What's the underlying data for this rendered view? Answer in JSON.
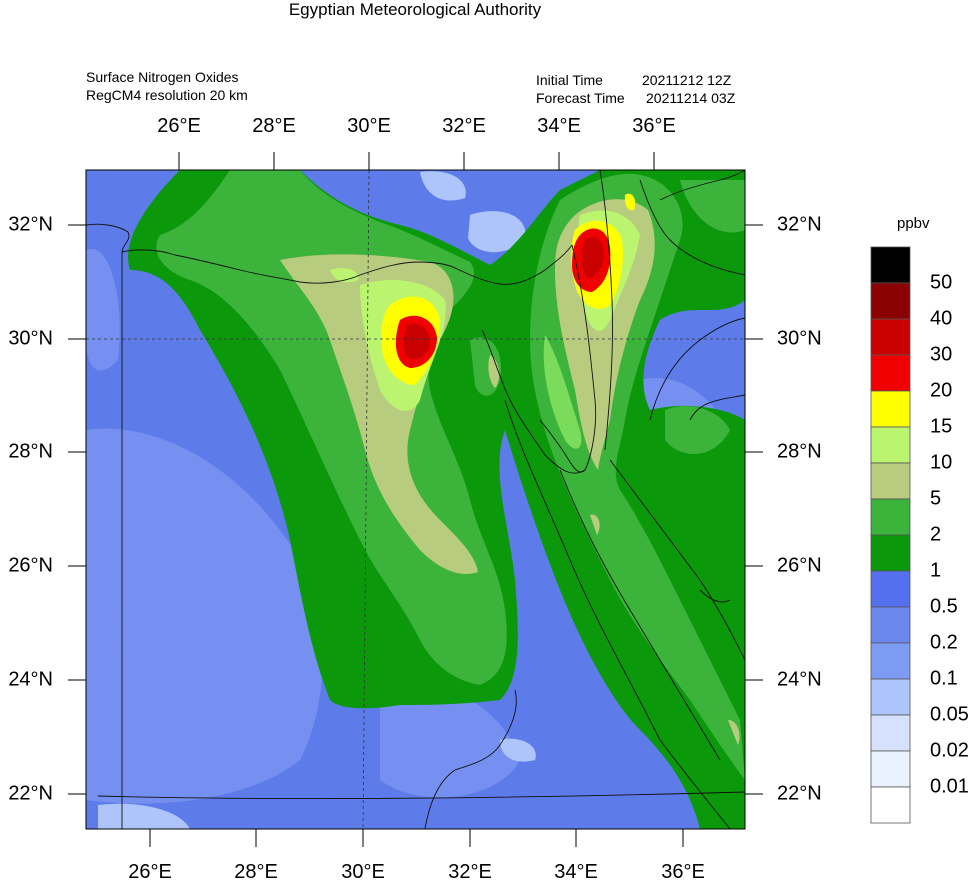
{
  "title": "Egyptian Meteorological Authority",
  "header": {
    "variable": "Surface Nitrogen Oxides",
    "model": "RegCM4   resolution 20 km",
    "initial_label": "Initial Time",
    "initial_value": "20211212 12Z",
    "forecast_label": "Forecast Time",
    "forecast_value": "20211214 03Z"
  },
  "axes": {
    "top_lon_labels": [
      "26°E",
      "28°E",
      "30°E",
      "32°E",
      "34°E",
      "36°E"
    ],
    "bottom_lon_labels": [
      "26°E",
      "28°E",
      "30°E",
      "32°E",
      "34°E",
      "36°E"
    ],
    "right_lat_labels": [
      "32°N",
      "30°N",
      "28°N",
      "26°N",
      "24°N",
      "22°N"
    ],
    "left_lat_labels": [
      "32°N",
      "30°N",
      "28°N",
      "26°N",
      "24°N",
      "22°N"
    ]
  },
  "colorbar": {
    "unit": "ppbv",
    "labels": [
      "50",
      "40",
      "30",
      "20",
      "15",
      "10",
      "5",
      "2",
      "1",
      "0.5",
      "0.2",
      "0.1",
      "0.05",
      "0.02",
      "0.01"
    ],
    "colors": [
      "#000000",
      "#8b0000",
      "#c80000",
      "#f00000",
      "#ffff00",
      "#bbf570",
      "#b8cc7f",
      "#3cb43c",
      "#0b980b",
      "#5470ee",
      "#6a87ec",
      "#7e9bf4",
      "#adc5fb",
      "#d6e2fd",
      "#eaf2fe",
      "#ffffff"
    ]
  },
  "map": {
    "background": "#5d7cea",
    "fields": {
      "land_low": "#7590f0",
      "pale": "#adc5fb",
      "green_dark": "#0b980b",
      "green": "#3cb43c",
      "olive": "#b8cc7f",
      "light_green": "#bbf570",
      "yellow": "#ffff00",
      "red": "#f00000",
      "dark_red": "#c80000"
    }
  }
}
